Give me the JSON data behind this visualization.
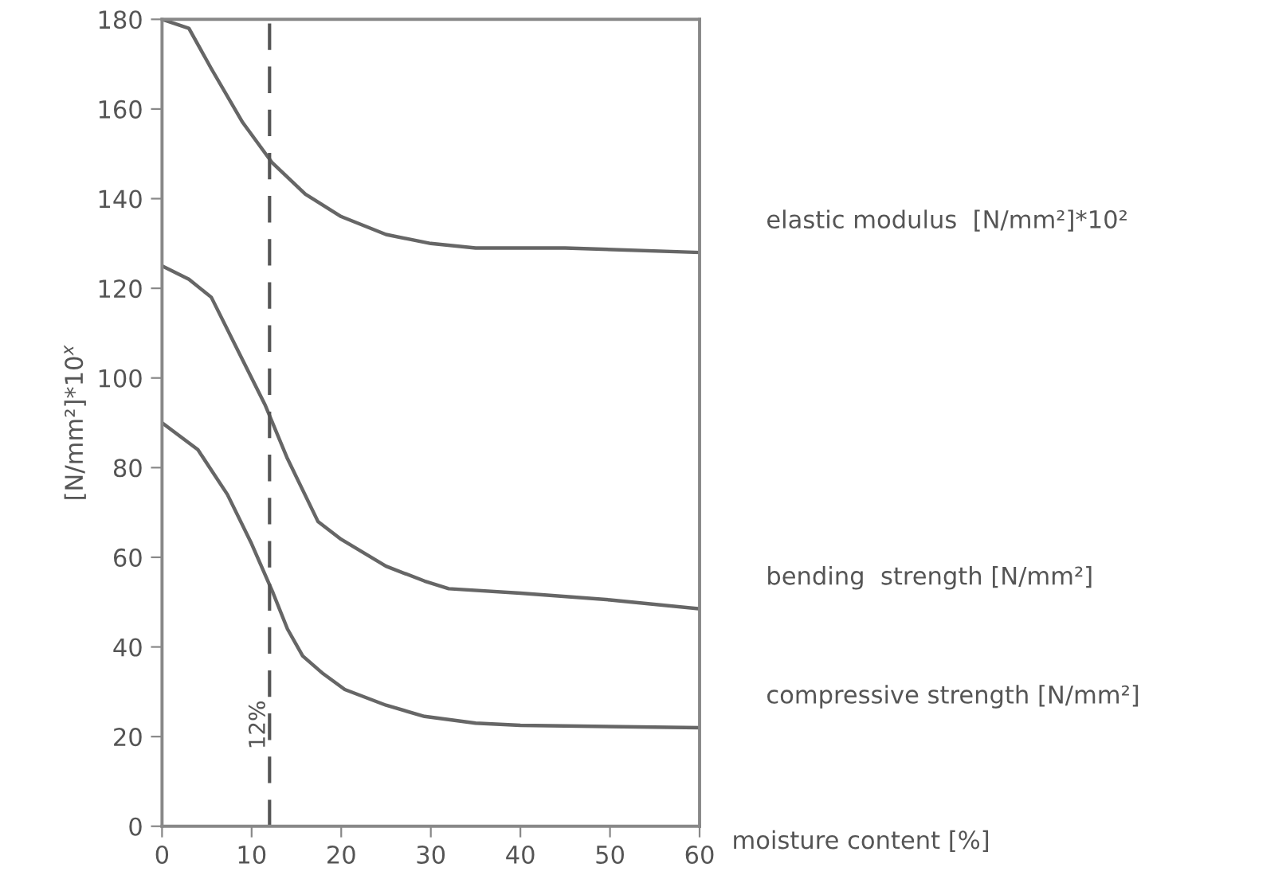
{
  "chart_data": {
    "type": "line",
    "xlabel": "moisture content [%]",
    "ylabel": "[N/mm²]*10$^{x}$",
    "xlim": [
      0,
      60
    ],
    "xticks": [
      0,
      10,
      20,
      30,
      40,
      50,
      60
    ],
    "ylim": [
      0,
      180
    ],
    "yticks": [
      0,
      20,
      40,
      60,
      80,
      100,
      120,
      140,
      160,
      180
    ],
    "grid": false,
    "legend": false,
    "marker": "none",
    "line_style": "solid",
    "ref_lines": [
      {
        "axis": "x",
        "value": 12,
        "label": "12%",
        "color": "#555555",
        "line_style": "dashed"
      }
    ],
    "series": [
      {
        "name": "elastic modulus  [N/mm²]*10²",
        "color": "#666666",
        "x": [
          0,
          3,
          5.5,
          9,
          12.3,
          16,
          20,
          25,
          30,
          35,
          45,
          60
        ],
        "values": [
          180,
          178,
          169,
          157,
          148,
          141,
          136,
          132,
          130,
          129,
          129,
          128
        ]
      },
      {
        "name": "bending  strength [N/mm²]",
        "color": "#666666",
        "x": [
          0,
          3,
          5.5,
          9,
          11.5,
          14,
          17.4,
          20,
          25,
          29.3,
          32,
          40,
          50,
          60
        ],
        "values": [
          125,
          122,
          118,
          104,
          94,
          82,
          68,
          64,
          58,
          54.7,
          53,
          52,
          50.5,
          48.5
        ]
      },
      {
        "name": "compressive strength [N/mm²]",
        "color": "#666666",
        "x": [
          0,
          4,
          7.3,
          10,
          12.4,
          14,
          15.7,
          18,
          20.4,
          25,
          29.3,
          35,
          40,
          60
        ],
        "values": [
          90,
          84,
          74,
          63,
          52,
          44,
          38,
          34,
          30.5,
          27,
          24.5,
          23,
          22.5,
          22
        ]
      }
    ]
  }
}
